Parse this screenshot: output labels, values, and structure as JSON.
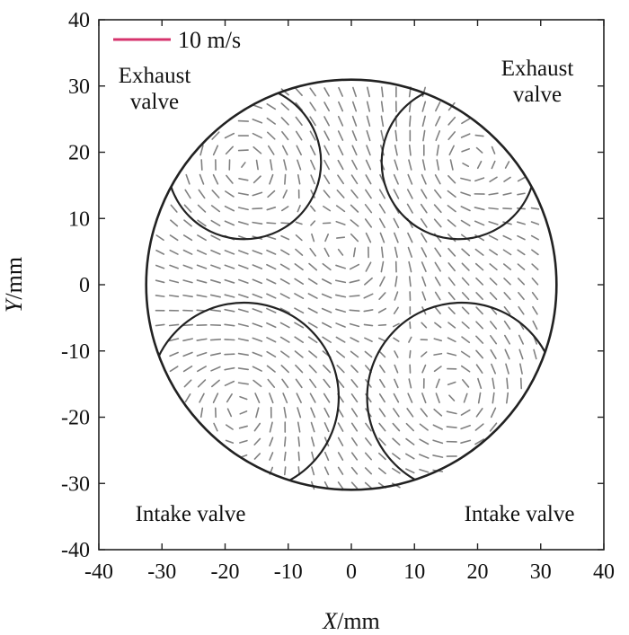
{
  "chart_data": {
    "type": "vector-field",
    "xlabel_italic": "X",
    "xlabel_unit": "/mm",
    "ylabel_italic": "Y",
    "ylabel_unit": "/mm",
    "xlim": [
      -40,
      40
    ],
    "ylim": [
      -40,
      40
    ],
    "xticks": [
      -40,
      -30,
      -20,
      -10,
      0,
      10,
      20,
      30,
      40
    ],
    "yticks": [
      -40,
      -30,
      -20,
      -10,
      0,
      10,
      20,
      30,
      40
    ],
    "scale_label": "10 m/s",
    "scale_magnitude": 10,
    "scale_color": "#d6336c",
    "cylinder": {
      "cx": 0,
      "cy": 0,
      "r": 32.5
    },
    "valves": [
      {
        "label": "Exhaust valve",
        "lines": [
          "Exhaust",
          "valve"
        ],
        "cx": -17,
        "cy": 18.5,
        "r": 12.2
      },
      {
        "label": "Exhaust valve",
        "lines": [
          "Exhaust",
          "valve"
        ],
        "cx": 17,
        "cy": 18.5,
        "r": 12.2
      },
      {
        "label": "Intake valve",
        "lines": [
          "Intake valve"
        ],
        "cx": -17,
        "cy": -17,
        "r": 15
      },
      {
        "label": "Intake valve",
        "lines": [
          "Intake valve"
        ],
        "cx": 17.5,
        "cy": -17,
        "r": 15
      }
    ],
    "grid": false,
    "vector_spacing": 2.2,
    "vector_color": "#555555"
  }
}
